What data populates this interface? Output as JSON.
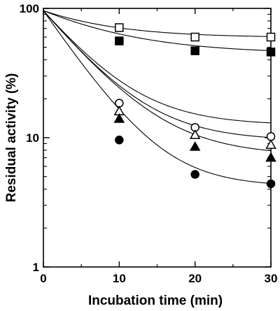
{
  "chart_data": {
    "type": "scatter",
    "title": "",
    "xlabel": "Incubation time (min)",
    "ylabel": "Residual activity (%)",
    "xlim": [
      0,
      30
    ],
    "ylim": [
      1,
      100
    ],
    "y_scale": "log",
    "x_ticks": [
      "0",
      "10",
      "20",
      "30"
    ],
    "y_ticks": [
      "1",
      "10",
      "100"
    ],
    "grid": false,
    "legend": "none",
    "series": [
      {
        "marker": "open-square",
        "x": [
          0,
          10,
          20,
          30
        ],
        "y": [
          95,
          71,
          60,
          60
        ],
        "fit": [
          96,
          36.5,
          0.118
        ]
      },
      {
        "marker": "filled-square",
        "x": [
          0,
          10,
          20,
          30
        ],
        "y": [
          95,
          56,
          47,
          46
        ],
        "fit": [
          96,
          51.5,
          0.1
        ]
      },
      {
        "marker": "open-circle",
        "x": [
          0,
          10,
          20,
          30
        ],
        "y": [
          95,
          18.5,
          12,
          10.2
        ],
        "fit": [
          96,
          83.5,
          0.17
        ]
      },
      {
        "marker": "open-triangle",
        "x": [
          0,
          10,
          20,
          30
        ],
        "y": [
          95,
          16,
          10.5,
          8.8
        ],
        "fit": [
          96,
          86.5,
          0.17
        ]
      },
      {
        "marker": "filled-triangle",
        "x": [
          0,
          10,
          20,
          30
        ],
        "y": [
          95,
          14,
          8.5,
          7
        ],
        "fit": [
          96,
          88.7,
          0.165
        ]
      },
      {
        "marker": "filled-circle",
        "x": [
          0,
          10,
          20,
          30
        ],
        "y": [
          95,
          9.6,
          5.2,
          4.4
        ],
        "fit": [
          96,
          91.8,
          0.2
        ]
      }
    ]
  }
}
